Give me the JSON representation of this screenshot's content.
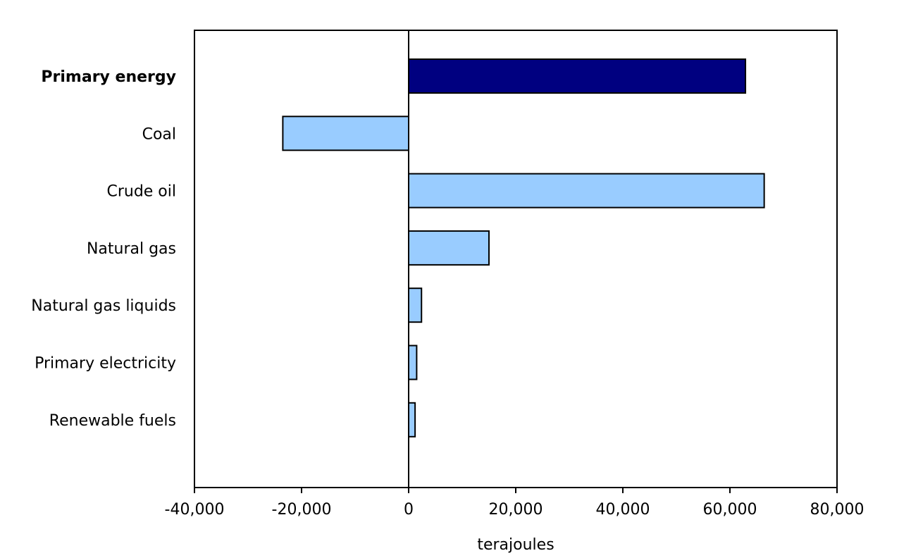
{
  "chart_data": {
    "type": "bar",
    "orientation": "horizontal",
    "categories": [
      "Primary energy",
      "Coal",
      "Crude oil",
      "Natural gas",
      "Natural gas liquids",
      "Primary electricity",
      "Renewable fuels"
    ],
    "values": [
      62900,
      -23500,
      66400,
      15000,
      2400,
      1500,
      1200
    ],
    "bold_categories": [
      "Primary energy"
    ],
    "colors": {
      "highlight": "#000080",
      "default": "#99ccff",
      "outline": "#000000"
    },
    "xlabel": "terajoules",
    "ylabel": "",
    "xlim": [
      -40000,
      80000
    ],
    "xticks": [
      -40000,
      -20000,
      0,
      20000,
      40000,
      60000,
      80000
    ],
    "xtick_labels": [
      "-40,000",
      "-20,000",
      "0",
      "20,000",
      "40,000",
      "60,000",
      "80,000"
    ],
    "grid": false,
    "legend": "none"
  }
}
